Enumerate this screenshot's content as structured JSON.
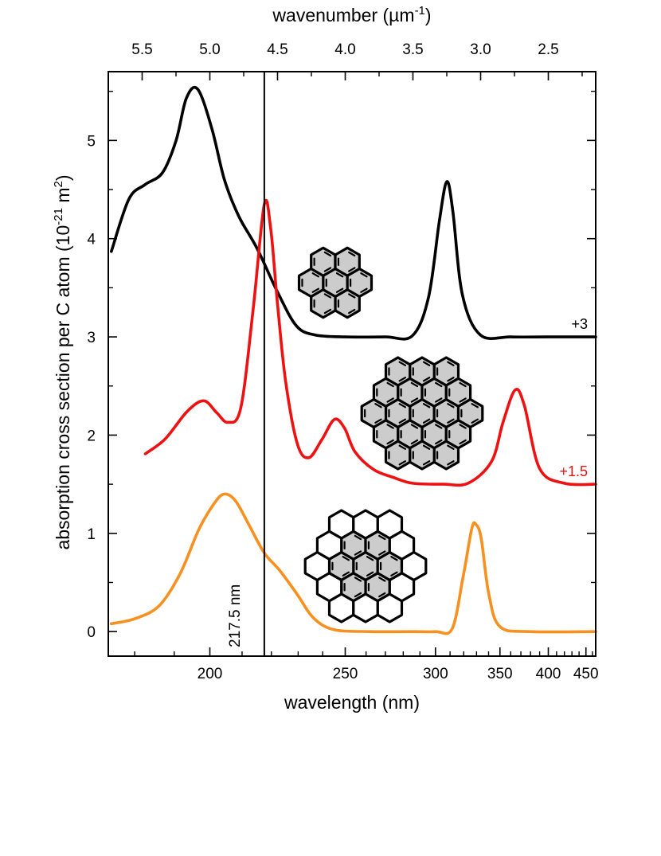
{
  "chart_data": {
    "type": "line",
    "title": "",
    "xlabel": "wavelength (nm)",
    "xlabel_top": "wavenumber (µm⁻¹)",
    "xlabel_top_parts": {
      "pre": "wavenumber (µm",
      "sup": "-1",
      "post": ")"
    },
    "ylabel": "absorption cross section per C atom (10⁻²¹ m²)",
    "ylabel_parts": {
      "pre": "absorption cross section per C atom (10",
      "sup1": "-21",
      "mid": " m",
      "sup2": "2",
      "post": ")"
    },
    "x_scale": "reciprocal (linear in wavenumber)",
    "wavenumber_range": [
      5.75,
      2.15
    ],
    "ylim": [
      -0.25,
      5.7
    ],
    "grid": false,
    "x_ticks": [
      200,
      250,
      300,
      350,
      400,
      450
    ],
    "x_tick_labels": [
      "200",
      "250",
      "300",
      "350",
      "400",
      "450"
    ],
    "top_ticks": [
      5.5,
      5.0,
      4.5,
      4.0,
      3.5,
      3.0,
      2.5
    ],
    "top_tick_labels": [
      "5.5",
      "5.0",
      "4.5",
      "4.0",
      "3.5",
      "3.0",
      "2.5"
    ],
    "y_ticks": [
      0,
      1,
      2,
      3,
      4,
      5
    ],
    "y_tick_labels": [
      "0",
      "1",
      "2",
      "3",
      "4",
      "5"
    ],
    "vline": {
      "x": 217.5,
      "label": "217.5 nm",
      "color": "#000000"
    },
    "series": [
      {
        "color": "#000000",
        "offset_label": "+3",
        "x": [
          174.6,
          178.6,
          182.5,
          186.9,
          190.5,
          193.3,
          196.5,
          200.6,
          204.4,
          208.9,
          215.0,
          222.5,
          229.4,
          236.7,
          250.0,
          270.0,
          285.3,
          295.4,
          302.6,
          307.7,
          312.0,
          319.0,
          333.1,
          360.0,
          400.0,
          465.1
        ],
        "values": [
          3.87,
          4.4,
          4.55,
          4.67,
          5.0,
          5.43,
          5.52,
          5.12,
          4.6,
          4.23,
          3.9,
          3.44,
          3.11,
          3.02,
          3.0,
          3.0,
          3.01,
          3.4,
          4.18,
          4.58,
          4.28,
          3.43,
          3.02,
          3.0,
          3.0,
          3.0
        ]
      },
      {
        "color": "#ee1111",
        "offset_label": "+1.5",
        "x": [
          182.6,
          187.6,
          193.5,
          198.2,
          202.0,
          205.5,
          209.6,
          213.7,
          217.5,
          219.8,
          222.2,
          225.2,
          229.7,
          234.3,
          239.8,
          245.1,
          249.7,
          254.6,
          263.8,
          274.3,
          285.5,
          305.2,
          323.3,
          342.5,
          352.8,
          364.3,
          373.6,
          390.0,
          420.0,
          465.1
        ],
        "values": [
          1.81,
          1.96,
          2.24,
          2.35,
          2.23,
          2.13,
          2.28,
          3.29,
          4.35,
          4.09,
          3.34,
          2.55,
          1.91,
          1.77,
          1.96,
          2.16,
          2.07,
          1.83,
          1.65,
          1.57,
          1.51,
          1.5,
          1.51,
          1.73,
          2.13,
          2.46,
          2.3,
          1.66,
          1.51,
          1.5
        ]
      },
      {
        "color": "#f7901e",
        "offset_label": "",
        "x": [
          174.6,
          180.0,
          186.0,
          191.6,
          196.8,
          201.4,
          204.4,
          207.9,
          212.2,
          217.5,
          223.1,
          229.6,
          236.1,
          244.9,
          262.5,
          285.0,
          300.0,
          311.5,
          319.7,
          326.3,
          329.6,
          333.8,
          340.1,
          350.0,
          380.0,
          465.1
        ],
        "values": [
          0.08,
          0.13,
          0.26,
          0.59,
          1.04,
          1.31,
          1.4,
          1.33,
          1.09,
          0.8,
          0.62,
          0.38,
          0.14,
          0.02,
          0.0,
          0.0,
          0.0,
          0.03,
          0.57,
          1.05,
          1.09,
          0.95,
          0.39,
          0.05,
          0.0,
          0.0
        ]
      }
    ]
  },
  "molecules": [
    {
      "name": "coronene",
      "rings": 7,
      "shaded_rings": 7
    },
    {
      "name": "circumcoronene-like PAH",
      "rings": 19,
      "shaded_rings": 19
    },
    {
      "name": "partially-shaded PAH",
      "rings": 19,
      "shaded_rings": 7
    }
  ]
}
